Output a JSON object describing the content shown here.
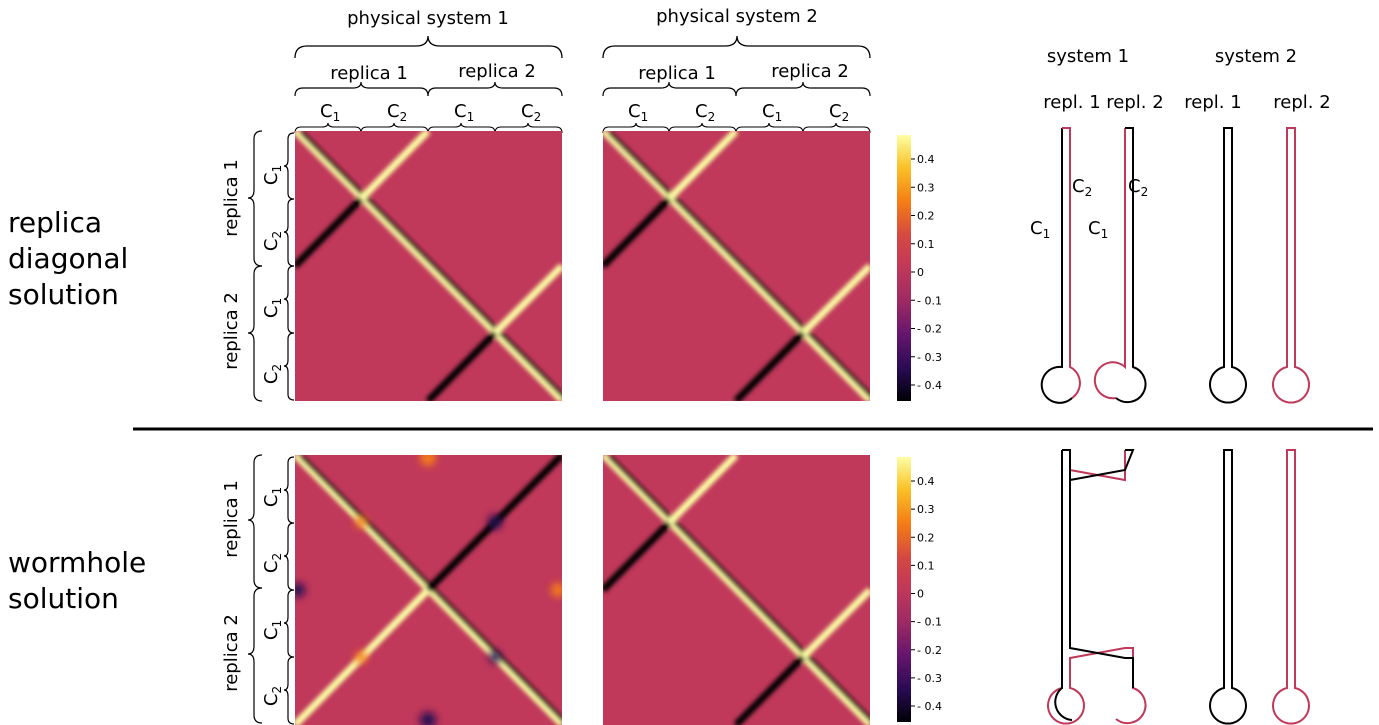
{
  "rows": [
    {
      "label_lines": [
        "replica",
        "diagonal",
        "solution"
      ]
    },
    {
      "label_lines": [
        "wormhole",
        "solution"
      ]
    }
  ],
  "top_headers": {
    "physical_system_1": "physical system 1",
    "physical_system_2": "physical system 2",
    "replica_1": "replica 1",
    "replica_2": "replica 2",
    "contour_1": "C",
    "contour_2": "C",
    "contour_1_sub": "1",
    "contour_2_sub": "2"
  },
  "side_labels": {
    "replica_1": "replica 1",
    "replica_2": "replica 2",
    "contour_1": "C",
    "contour_2": "C",
    "contour_1_sub": "1",
    "contour_2_sub": "2"
  },
  "colorbar": {
    "ticks": [
      "0.4",
      "0.3",
      "0.2",
      "0.1",
      "0",
      "- 0.1",
      "- 0.2",
      "- 0.3",
      "- 0.4"
    ],
    "colors": [
      "#fcffa4",
      "#fac228",
      "#f57d15",
      "#d44842",
      "#c0385a",
      "#9f2a63",
      "#65156e",
      "#280b53",
      "#000004"
    ]
  },
  "colors": {
    "background_red": "#c0385a",
    "system_1_line": "#000000",
    "system_2_line": "#c0385a"
  },
  "contour_diagram": {
    "system_1": "system 1",
    "system_2": "system 2",
    "repl_1": "repl. 1",
    "repl_2": "repl. 2",
    "c_label": "C",
    "sub_1": "1",
    "sub_2": "2"
  }
}
